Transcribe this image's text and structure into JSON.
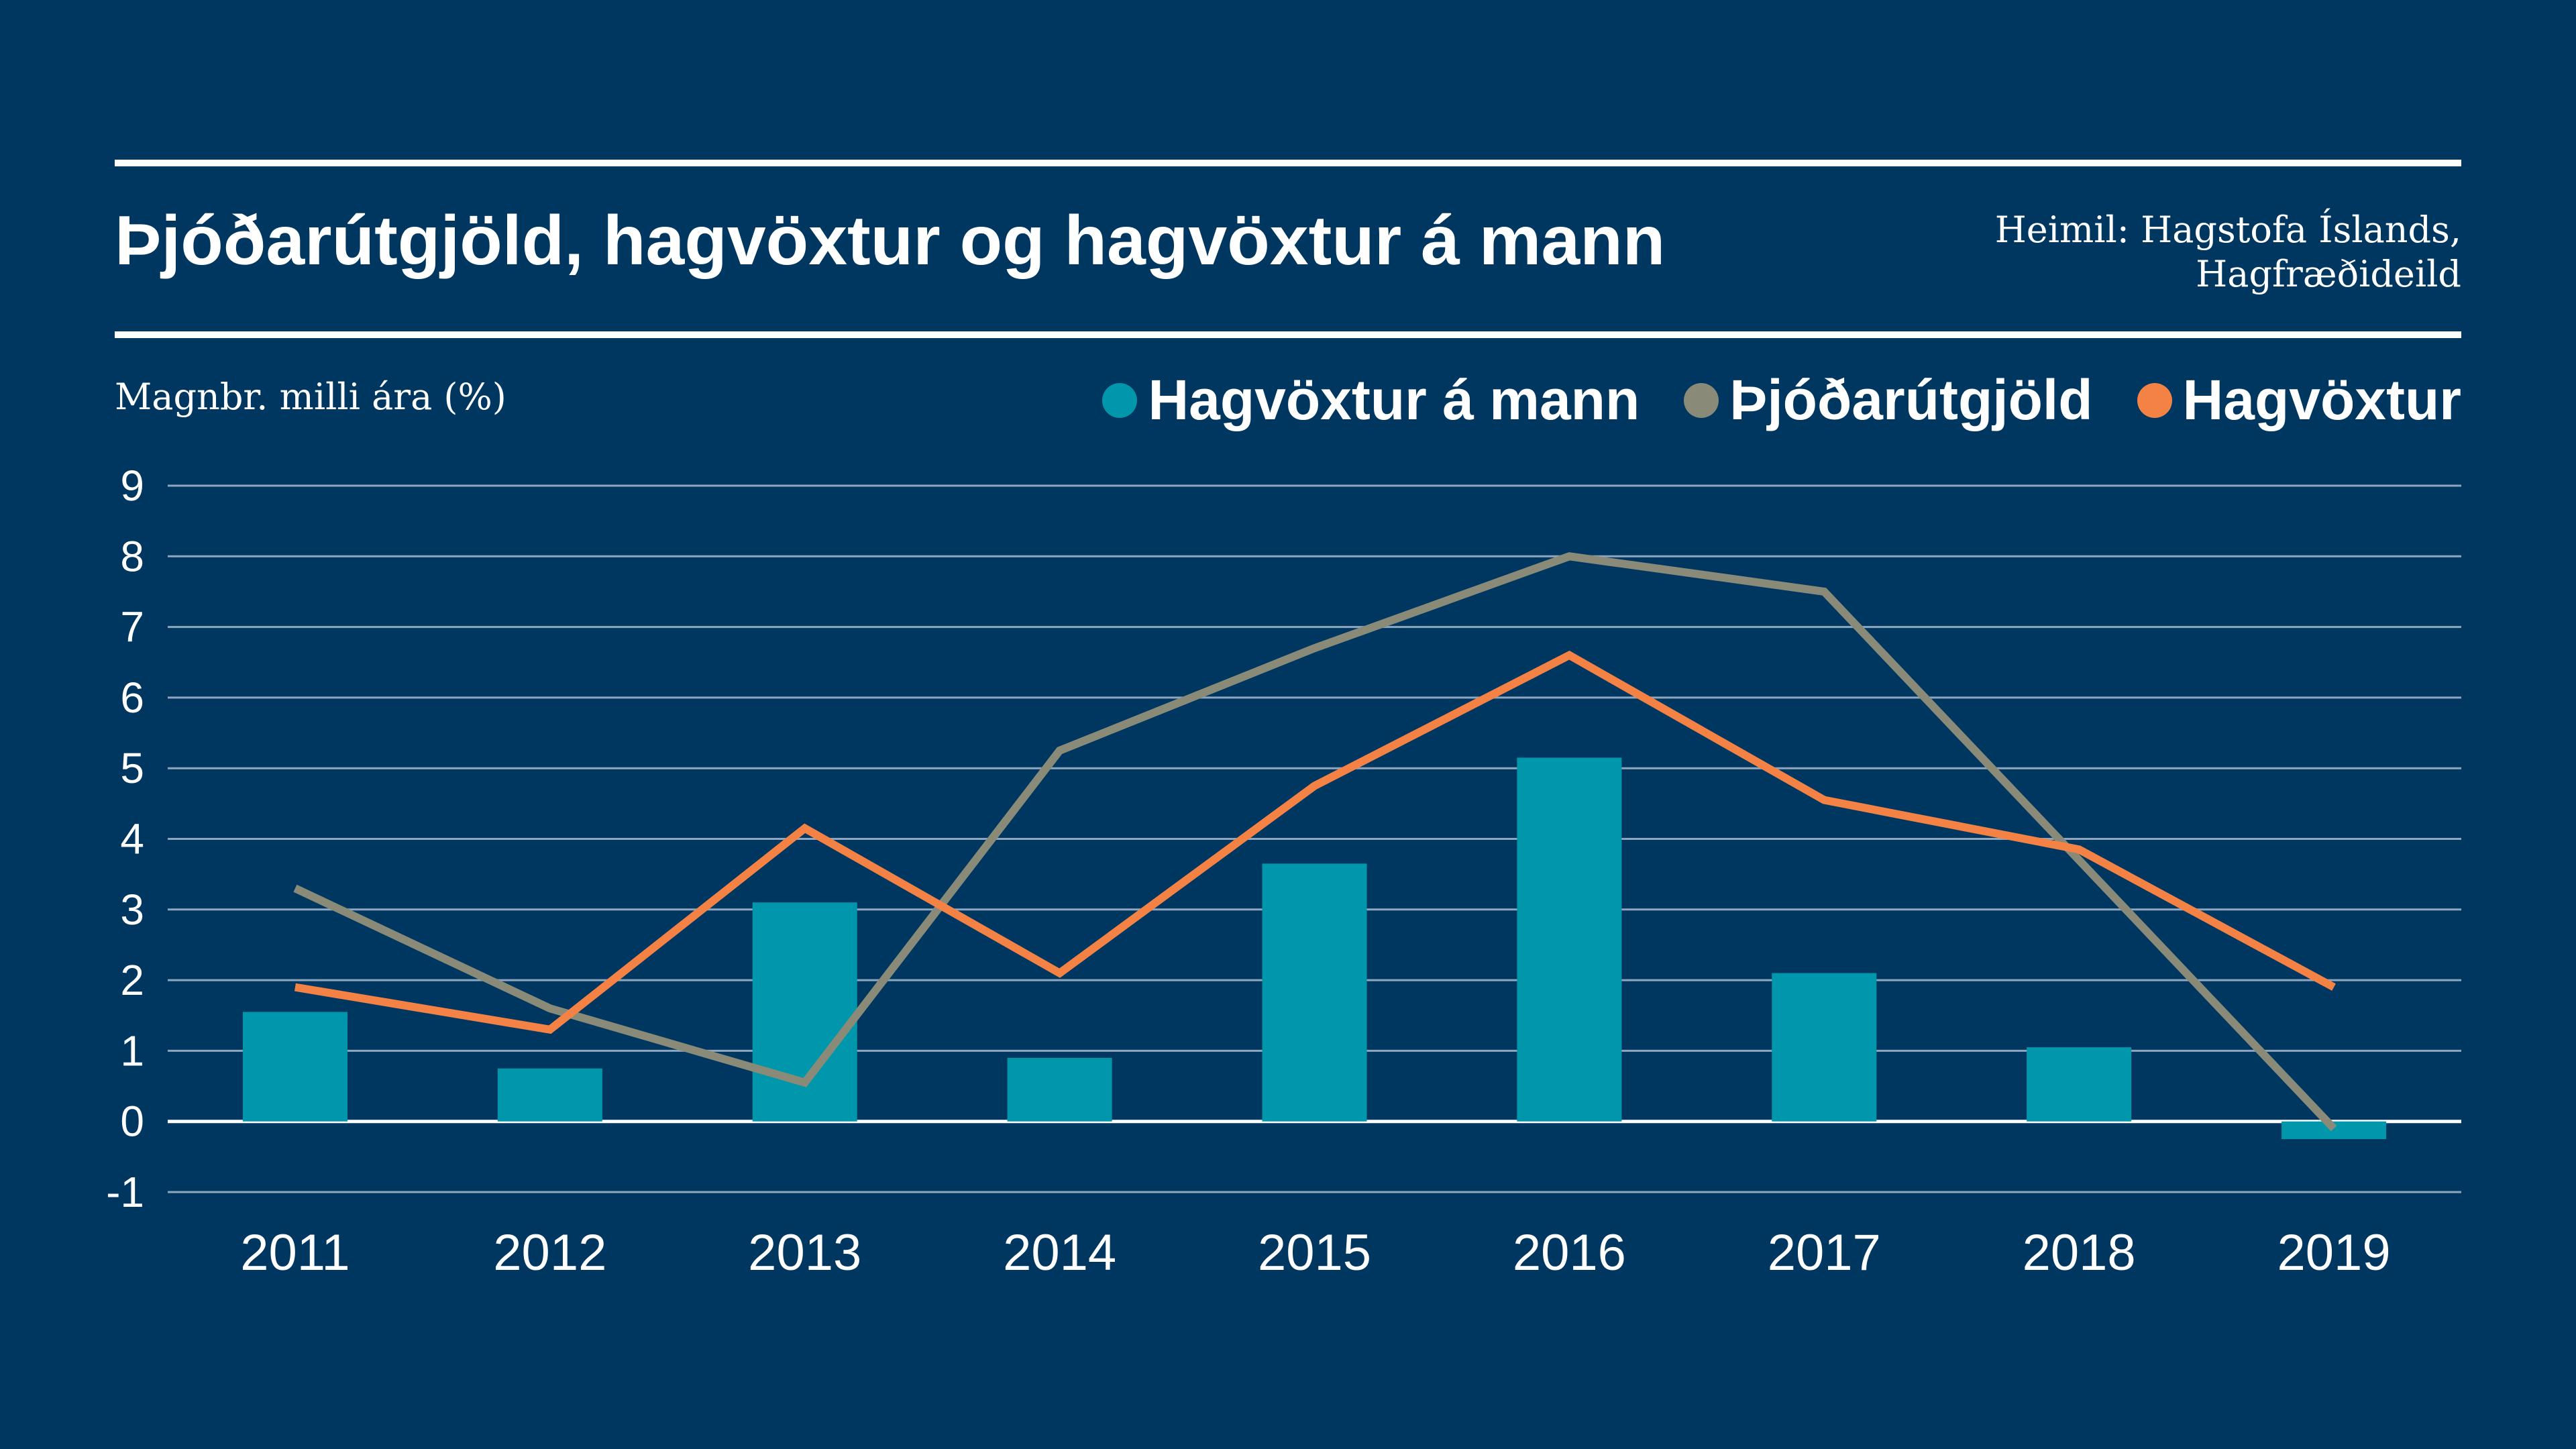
{
  "title": "Þjóðarútgjöld, hagvöxtur og hagvöxtur á mann",
  "source_lines": [
    "Heimil: Hagstofa Íslands,",
    "Hagfræðideild"
  ],
  "chart_data": {
    "type": "bar",
    "ylabel": "Magnbr. milli ára (%)",
    "categories": [
      "2011",
      "2012",
      "2013",
      "2014",
      "2015",
      "2016",
      "2017",
      "2018",
      "2019"
    ],
    "ylim": [
      -1,
      9
    ],
    "yticks": [
      9,
      8,
      7,
      6,
      5,
      4,
      3,
      2,
      1,
      0,
      -1
    ],
    "grid": true,
    "legend_position": "top-right",
    "series": [
      {
        "name": "Hagvöxtur á mann",
        "type": "bar",
        "color": "#0097AC",
        "values": [
          1.55,
          0.75,
          3.1,
          0.9,
          3.65,
          5.15,
          2.1,
          1.05,
          -0.25
        ]
      },
      {
        "name": "Þjóðarútgjöld",
        "type": "line",
        "color": "#8A8A78",
        "values": [
          3.3,
          1.6,
          0.55,
          5.25,
          6.7,
          8.0,
          7.5,
          3.7,
          -0.1
        ]
      },
      {
        "name": "Hagvöxtur",
        "type": "line",
        "color": "#F58245",
        "values": [
          1.9,
          1.3,
          4.15,
          2.1,
          4.75,
          6.6,
          4.55,
          3.85,
          1.9
        ]
      }
    ]
  }
}
